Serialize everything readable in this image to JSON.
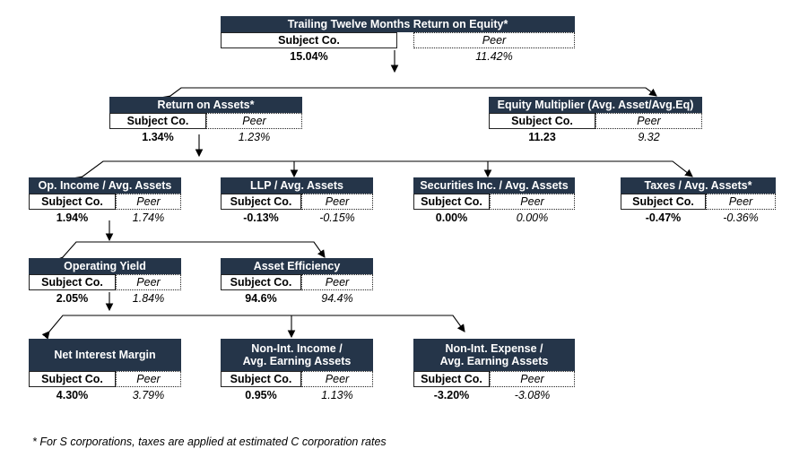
{
  "nodes": [
    {
      "title": [
        "Trailing Twelve Months Return on Equity*"
      ],
      "subject_label": "Subject Co.",
      "peer_label": "Peer",
      "subject_value": "15.04%",
      "peer_value": "11.42%"
    },
    {
      "title": [
        "Return on Assets*"
      ],
      "subject_label": "Subject Co.",
      "peer_label": "Peer",
      "subject_value": "1.34%",
      "peer_value": "1.23%"
    },
    {
      "title": [
        "Equity Multiplier (Avg. Asset/Avg.Eq)"
      ],
      "subject_label": "Subject Co.",
      "peer_label": "Peer",
      "subject_value": "11.23",
      "peer_value": "9.32"
    },
    {
      "title": [
        "Op. Income / Avg. Assets"
      ],
      "subject_label": "Subject Co.",
      "peer_label": "Peer",
      "subject_value": "1.94%",
      "peer_value": "1.74%"
    },
    {
      "title": [
        "LLP / Avg. Assets"
      ],
      "subject_label": "Subject Co.",
      "peer_label": "Peer",
      "subject_value": "-0.13%",
      "peer_value": "-0.15%"
    },
    {
      "title": [
        "Securities Inc. / Avg. Assets"
      ],
      "subject_label": "Subject Co.",
      "peer_label": "Peer",
      "subject_value": "0.00%",
      "peer_value": "0.00%"
    },
    {
      "title": [
        "Taxes / Avg. Assets*"
      ],
      "subject_label": "Subject Co.",
      "peer_label": "Peer",
      "subject_value": "-0.47%",
      "peer_value": "-0.36%"
    },
    {
      "title": [
        "Operating Yield"
      ],
      "subject_label": "Subject Co.",
      "peer_label": "Peer",
      "subject_value": "2.05%",
      "peer_value": "1.84%"
    },
    {
      "title": [
        "Asset Efficiency"
      ],
      "subject_label": "Subject Co.",
      "peer_label": "Peer",
      "subject_value": "94.6%",
      "peer_value": "94.4%"
    },
    {
      "title": [
        "Net Interest Margin"
      ],
      "subject_label": "Subject Co.",
      "peer_label": "Peer",
      "subject_value": "4.30%",
      "peer_value": "3.79%"
    },
    {
      "title": [
        "Non-Int. Income /",
        "Avg. Earning Assets"
      ],
      "subject_label": "Subject Co.",
      "peer_label": "Peer",
      "subject_value": "0.95%",
      "peer_value": "1.13%"
    },
    {
      "title": [
        "Non-Int. Expense /",
        "Avg. Earning Assets"
      ],
      "subject_label": "Subject Co.",
      "peer_label": "Peer",
      "subject_value": "-3.20%",
      "peer_value": "-3.08%"
    }
  ],
  "footnote": "* For S corporations, taxes are applied at estimated C corporation rates"
}
